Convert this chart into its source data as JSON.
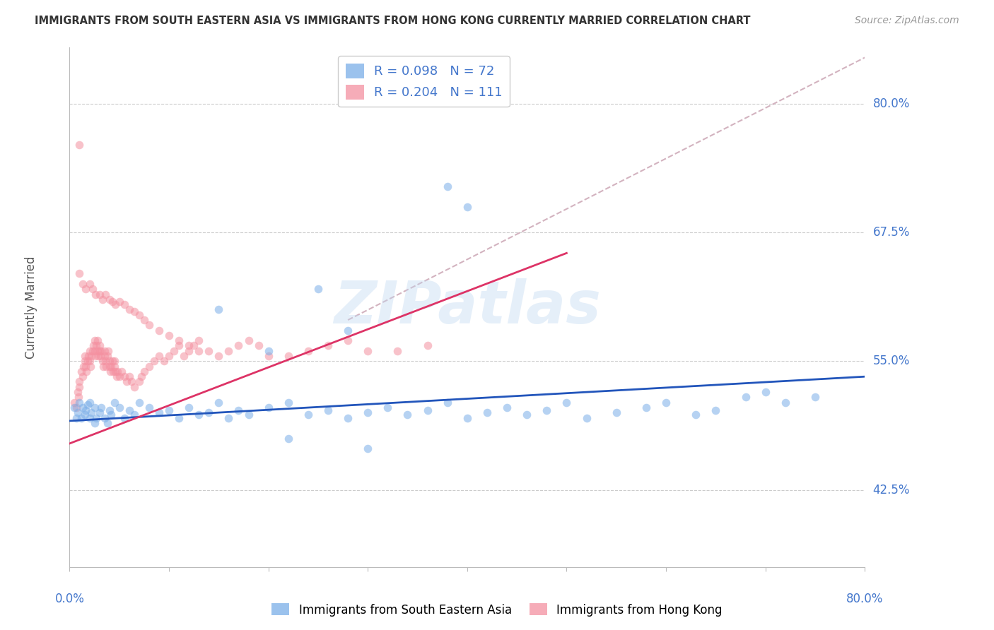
{
  "title": "IMMIGRANTS FROM SOUTH EASTERN ASIA VS IMMIGRANTS FROM HONG KONG CURRENTLY MARRIED CORRELATION CHART",
  "source": "Source: ZipAtlas.com",
  "ylabel": "Currently Married",
  "watermark": "ZIPatlas",
  "blue_color": "#7aaee8",
  "pink_color": "#f490a0",
  "blue_line_color": "#2255bb",
  "pink_line_color": "#dd3366",
  "dashed_line_color": "#c8a0b0",
  "grid_color": "#cccccc",
  "tick_label_color": "#4477cc",
  "scatter_alpha": 0.55,
  "scatter_size": 70,
  "xmin": 0.0,
  "xmax": 0.8,
  "ymin": 0.35,
  "ymax": 0.855,
  "ytick_vals": [
    0.425,
    0.55,
    0.675,
    0.8
  ],
  "ytick_labels": [
    "42.5%",
    "55.0%",
    "67.5%",
    "80.0%"
  ],
  "blue_x": [
    0.005,
    0.007,
    0.008,
    0.01,
    0.012,
    0.013,
    0.015,
    0.016,
    0.018,
    0.02,
    0.02,
    0.022,
    0.025,
    0.025,
    0.027,
    0.03,
    0.032,
    0.035,
    0.038,
    0.04,
    0.042,
    0.045,
    0.05,
    0.055,
    0.06,
    0.065,
    0.07,
    0.08,
    0.09,
    0.1,
    0.11,
    0.12,
    0.13,
    0.14,
    0.15,
    0.16,
    0.17,
    0.18,
    0.2,
    0.22,
    0.24,
    0.26,
    0.28,
    0.3,
    0.32,
    0.34,
    0.36,
    0.38,
    0.4,
    0.42,
    0.44,
    0.46,
    0.48,
    0.5,
    0.52,
    0.55,
    0.58,
    0.6,
    0.63,
    0.65,
    0.68,
    0.7,
    0.72,
    0.75,
    0.38,
    0.4,
    0.25,
    0.28,
    0.2,
    0.15,
    0.22,
    0.3
  ],
  "blue_y": [
    0.505,
    0.495,
    0.5,
    0.51,
    0.495,
    0.505,
    0.498,
    0.502,
    0.508,
    0.495,
    0.51,
    0.5,
    0.49,
    0.505,
    0.495,
    0.5,
    0.505,
    0.495,
    0.49,
    0.502,
    0.498,
    0.51,
    0.505,
    0.495,
    0.502,
    0.498,
    0.51,
    0.505,
    0.5,
    0.502,
    0.495,
    0.505,
    0.498,
    0.5,
    0.51,
    0.495,
    0.502,
    0.498,
    0.505,
    0.51,
    0.498,
    0.502,
    0.495,
    0.5,
    0.505,
    0.498,
    0.502,
    0.51,
    0.495,
    0.5,
    0.505,
    0.498,
    0.502,
    0.51,
    0.495,
    0.5,
    0.505,
    0.51,
    0.498,
    0.502,
    0.515,
    0.52,
    0.51,
    0.515,
    0.72,
    0.7,
    0.62,
    0.58,
    0.56,
    0.6,
    0.475,
    0.465
  ],
  "pink_x": [
    0.005,
    0.007,
    0.008,
    0.009,
    0.01,
    0.01,
    0.012,
    0.013,
    0.014,
    0.015,
    0.015,
    0.016,
    0.017,
    0.018,
    0.019,
    0.02,
    0.02,
    0.021,
    0.022,
    0.023,
    0.024,
    0.025,
    0.025,
    0.026,
    0.027,
    0.028,
    0.028,
    0.029,
    0.03,
    0.03,
    0.031,
    0.032,
    0.033,
    0.034,
    0.035,
    0.035,
    0.036,
    0.037,
    0.038,
    0.039,
    0.04,
    0.04,
    0.041,
    0.042,
    0.043,
    0.044,
    0.045,
    0.045,
    0.046,
    0.047,
    0.048,
    0.05,
    0.052,
    0.055,
    0.057,
    0.06,
    0.062,
    0.065,
    0.07,
    0.072,
    0.075,
    0.08,
    0.085,
    0.09,
    0.095,
    0.1,
    0.105,
    0.11,
    0.115,
    0.12,
    0.125,
    0.13,
    0.14,
    0.15,
    0.16,
    0.17,
    0.18,
    0.19,
    0.2,
    0.22,
    0.24,
    0.26,
    0.28,
    0.3,
    0.33,
    0.36,
    0.01,
    0.013,
    0.016,
    0.02,
    0.023,
    0.026,
    0.03,
    0.033,
    0.036,
    0.04,
    0.043,
    0.046,
    0.05,
    0.055,
    0.06,
    0.065,
    0.07,
    0.075,
    0.08,
    0.09,
    0.1,
    0.11,
    0.12,
    0.13,
    0.01
  ],
  "pink_y": [
    0.51,
    0.505,
    0.52,
    0.515,
    0.525,
    0.53,
    0.54,
    0.535,
    0.545,
    0.55,
    0.555,
    0.545,
    0.54,
    0.55,
    0.555,
    0.56,
    0.55,
    0.545,
    0.555,
    0.56,
    0.565,
    0.57,
    0.56,
    0.555,
    0.565,
    0.57,
    0.56,
    0.555,
    0.56,
    0.565,
    0.555,
    0.56,
    0.55,
    0.545,
    0.555,
    0.56,
    0.55,
    0.545,
    0.555,
    0.56,
    0.545,
    0.55,
    0.54,
    0.545,
    0.55,
    0.54,
    0.545,
    0.55,
    0.54,
    0.535,
    0.54,
    0.535,
    0.54,
    0.535,
    0.53,
    0.535,
    0.53,
    0.525,
    0.53,
    0.535,
    0.54,
    0.545,
    0.55,
    0.555,
    0.55,
    0.555,
    0.56,
    0.565,
    0.555,
    0.56,
    0.565,
    0.57,
    0.56,
    0.555,
    0.56,
    0.565,
    0.57,
    0.565,
    0.555,
    0.555,
    0.56,
    0.565,
    0.57,
    0.56,
    0.56,
    0.565,
    0.635,
    0.625,
    0.62,
    0.625,
    0.62,
    0.615,
    0.615,
    0.61,
    0.615,
    0.61,
    0.608,
    0.605,
    0.608,
    0.605,
    0.6,
    0.598,
    0.595,
    0.59,
    0.585,
    0.58,
    0.575,
    0.57,
    0.565,
    0.56,
    0.76
  ],
  "blue_line_x": [
    0.0,
    0.8
  ],
  "blue_line_y": [
    0.492,
    0.535
  ],
  "pink_line_x": [
    0.0,
    0.5
  ],
  "pink_line_y": [
    0.47,
    0.655
  ],
  "dash_line_x": [
    0.28,
    0.8
  ],
  "dash_line_y": [
    0.59,
    0.845
  ]
}
